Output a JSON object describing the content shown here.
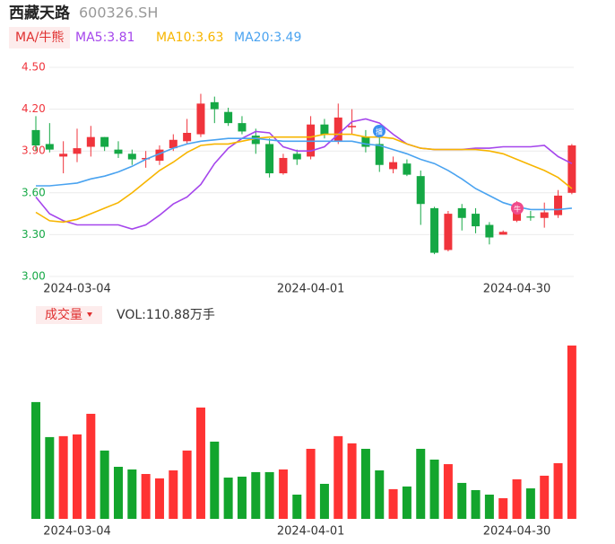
{
  "chart_data": [
    {
      "type": "candlestick",
      "title": "西藏天路",
      "subtitle": "600326.SH",
      "indicator": "MA/牛熊",
      "categories": [
        null,
        null,
        null,
        "2024-03-04",
        null,
        null,
        null,
        null,
        null,
        null,
        null,
        null,
        null,
        null,
        null,
        null,
        null,
        null,
        null,
        null,
        "2024-04-01",
        null,
        null,
        null,
        null,
        null,
        null,
        null,
        null,
        null,
        null,
        null,
        null,
        null,
        null,
        "2024-04-30",
        null,
        null,
        null,
        null
      ],
      "open": [
        4.05,
        3.95,
        3.86,
        3.88,
        3.93,
        4.0,
        3.91,
        3.88,
        3.84,
        3.83,
        3.92,
        3.97,
        4.02,
        4.25,
        4.18,
        4.1,
        4.01,
        3.95,
        3.74,
        3.88,
        3.86,
        4.09,
        3.97,
        4.07,
        4.0,
        3.95,
        3.77,
        3.81,
        3.72,
        3.49,
        3.19,
        3.49,
        3.45,
        3.37,
        3.3,
        3.4,
        3.43,
        3.42,
        3.44,
        3.6
      ],
      "high": [
        4.15,
        4.1,
        3.97,
        4.06,
        4.08,
        4.0,
        3.97,
        3.91,
        3.9,
        3.94,
        4.02,
        4.13,
        4.31,
        4.29,
        4.21,
        4.15,
        4.06,
        3.99,
        3.88,
        3.91,
        4.15,
        4.13,
        4.24,
        4.2,
        4.05,
        4.02,
        3.86,
        3.84,
        3.76,
        3.5,
        3.47,
        3.52,
        3.49,
        3.39,
        3.33,
        3.54,
        3.47,
        3.53,
        3.62,
        3.95
      ],
      "low": [
        3.9,
        3.89,
        3.74,
        3.82,
        3.86,
        3.9,
        3.85,
        3.8,
        3.78,
        3.8,
        3.9,
        3.95,
        4.0,
        4.1,
        4.08,
        4.02,
        3.88,
        3.71,
        3.73,
        3.8,
        3.84,
        3.99,
        3.95,
        4.02,
        3.89,
        3.75,
        3.74,
        3.72,
        3.37,
        3.16,
        3.18,
        3.33,
        3.31,
        3.23,
        3.3,
        3.39,
        3.4,
        3.35,
        3.42,
        3.59
      ],
      "close": [
        3.94,
        3.91,
        3.88,
        3.92,
        4.0,
        3.93,
        3.88,
        3.84,
        3.85,
        3.91,
        3.98,
        4.03,
        4.24,
        4.2,
        4.1,
        4.04,
        3.95,
        3.74,
        3.85,
        3.84,
        4.09,
        4.02,
        4.14,
        4.08,
        3.93,
        3.8,
        3.82,
        3.73,
        3.52,
        3.17,
        3.45,
        3.42,
        3.36,
        3.28,
        3.32,
        3.49,
        3.43,
        3.46,
        3.58,
        3.94
      ],
      "up_color": "#f0343c",
      "down_color": "#15a845",
      "series": [
        {
          "name": "MA5:3.81",
          "color": "#a546ec",
          "values": [
            3.57,
            3.45,
            3.4,
            3.37,
            3.37,
            3.37,
            3.37,
            3.34,
            3.37,
            3.44,
            3.52,
            3.57,
            3.66,
            3.81,
            3.92,
            3.99,
            4.04,
            4.03,
            3.93,
            3.9,
            3.9,
            3.93,
            4.02,
            4.11,
            4.13,
            4.1,
            4.02,
            3.95,
            3.92,
            3.91,
            3.91,
            3.91,
            3.92,
            3.92,
            3.93,
            3.93,
            3.93,
            3.94,
            3.86,
            3.81
          ]
        },
        {
          "name": "MA10:3.63",
          "color": "#f7b500",
          "values": [
            3.46,
            3.4,
            3.39,
            3.41,
            3.45,
            3.49,
            3.53,
            3.6,
            3.68,
            3.76,
            3.82,
            3.89,
            3.94,
            3.95,
            3.95,
            3.97,
            3.99,
            4.0,
            4.0,
            4.0,
            4.0,
            4.02,
            4.02,
            4.02,
            4.0,
            4.0,
            3.99,
            3.95,
            3.92,
            3.91,
            3.91,
            3.91,
            3.91,
            3.9,
            3.88,
            3.84,
            3.8,
            3.76,
            3.71,
            3.63
          ]
        },
        {
          "name": "MA20:3.49",
          "color": "#4aa3f0",
          "values": [
            3.65,
            3.65,
            3.66,
            3.67,
            3.7,
            3.72,
            3.75,
            3.79,
            3.84,
            3.88,
            3.92,
            3.95,
            3.97,
            3.98,
            3.99,
            3.99,
            3.99,
            3.98,
            3.97,
            3.97,
            3.97,
            3.97,
            3.97,
            3.97,
            3.95,
            3.94,
            3.91,
            3.88,
            3.84,
            3.81,
            3.76,
            3.7,
            3.63,
            3.58,
            3.53,
            3.5,
            3.48,
            3.48,
            3.48,
            3.49
          ]
        }
      ],
      "ylim": [
        3.0,
        4.5
      ],
      "yticks": [
        {
          "value": 3.0,
          "label": "3.00"
        },
        {
          "value": 3.3,
          "label": "3.30"
        },
        {
          "value": 3.6,
          "label": "3.60"
        },
        {
          "value": 3.9,
          "label": "3.90"
        },
        {
          "value": 4.2,
          "label": "4.20"
        },
        {
          "value": 4.5,
          "label": "4.50"
        }
      ],
      "ytick_colors": [
        "#15a845",
        "#15a845",
        "#15a845",
        "#f0343c",
        "#f0343c",
        "#f0343c"
      ],
      "grid": true,
      "annotations": [
        "播",
        "牛"
      ]
    },
    {
      "type": "bar",
      "title": "成交量",
      "legend": "VOL:110.88万手",
      "categories": [
        null,
        null,
        null,
        "2024-03-04",
        null,
        null,
        null,
        null,
        null,
        null,
        null,
        null,
        null,
        null,
        null,
        null,
        null,
        null,
        null,
        null,
        "2024-04-01",
        null,
        null,
        null,
        null,
        null,
        null,
        null,
        null,
        null,
        null,
        null,
        null,
        null,
        null,
        "2024-04-30",
        null,
        null,
        null,
        null
      ],
      "values": [
        74.7,
        52.3,
        52.9,
        54.0,
        67.2,
        43.7,
        33.3,
        31.6,
        28.7,
        25.9,
        31.0,
        43.7,
        71.2,
        49.4,
        26.4,
        27.0,
        29.9,
        29.9,
        31.6,
        15.5,
        44.8,
        22.4,
        52.9,
        48.3,
        44.8,
        31.0,
        19.0,
        20.7,
        44.8,
        37.9,
        35.0,
        23.0,
        18.4,
        15.5,
        13.2,
        25.3,
        19.5,
        27.6,
        35.6,
        110.88
      ],
      "ylim": [
        0,
        120
      ]
    }
  ]
}
